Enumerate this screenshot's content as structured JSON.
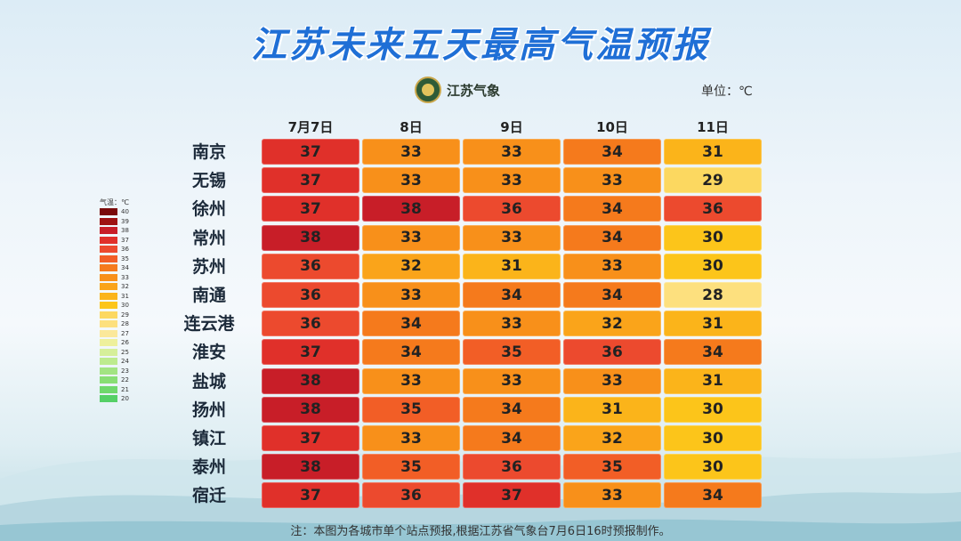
{
  "title": "江苏未来五天最高气温预报",
  "logo_text": "江苏气象",
  "unit_label": "单位：℃",
  "footnote": "注：本图为各城市单个站点预报,根据江苏省气象台7月6日16时预报制作。",
  "legend": {
    "title": "气温：℃",
    "items": [
      {
        "label": "40",
        "color": "#7a0a0a"
      },
      {
        "label": "39",
        "color": "#9e1212"
      },
      {
        "label": "38",
        "color": "#c81e28"
      },
      {
        "label": "37",
        "color": "#e0302a"
      },
      {
        "label": "36",
        "color": "#ec4a2e"
      },
      {
        "label": "35",
        "color": "#f25e26"
      },
      {
        "label": "34",
        "color": "#f57a1c"
      },
      {
        "label": "33",
        "color": "#f8901a"
      },
      {
        "label": "32",
        "color": "#faa41a"
      },
      {
        "label": "31",
        "color": "#fbb41a"
      },
      {
        "label": "30",
        "color": "#fcc51a"
      },
      {
        "label": "29",
        "color": "#fcd860"
      },
      {
        "label": "28",
        "color": "#fde07e"
      },
      {
        "label": "27",
        "color": "#fbe89a"
      },
      {
        "label": "26",
        "color": "#eef09c"
      },
      {
        "label": "25",
        "color": "#d6ef9a"
      },
      {
        "label": "24",
        "color": "#bdeb8e"
      },
      {
        "label": "23",
        "color": "#a2e482"
      },
      {
        "label": "22",
        "color": "#88de74"
      },
      {
        "label": "21",
        "color": "#6fd86c"
      },
      {
        "label": "20",
        "color": "#55d066"
      }
    ]
  },
  "chart_data": {
    "type": "heatmap",
    "title": "江苏未来五天最高气温预报",
    "unit": "℃",
    "columns": [
      "7月7日",
      "8日",
      "9日",
      "10日",
      "11日"
    ],
    "rows": [
      "南京",
      "无锡",
      "徐州",
      "常州",
      "苏州",
      "南通",
      "连云港",
      "淮安",
      "盐城",
      "扬州",
      "镇江",
      "泰州",
      "宿迁"
    ],
    "values": [
      [
        37,
        33,
        33,
        34,
        31
      ],
      [
        37,
        33,
        33,
        33,
        29
      ],
      [
        37,
        38,
        36,
        34,
        36
      ],
      [
        38,
        33,
        33,
        34,
        30
      ],
      [
        36,
        32,
        31,
        33,
        30
      ],
      [
        36,
        33,
        34,
        34,
        28
      ],
      [
        36,
        34,
        33,
        32,
        31
      ],
      [
        37,
        34,
        35,
        36,
        34
      ],
      [
        38,
        33,
        33,
        33,
        31
      ],
      [
        38,
        35,
        34,
        31,
        30
      ],
      [
        37,
        33,
        34,
        32,
        30
      ],
      [
        38,
        35,
        36,
        35,
        30
      ],
      [
        37,
        36,
        37,
        33,
        34
      ]
    ]
  }
}
